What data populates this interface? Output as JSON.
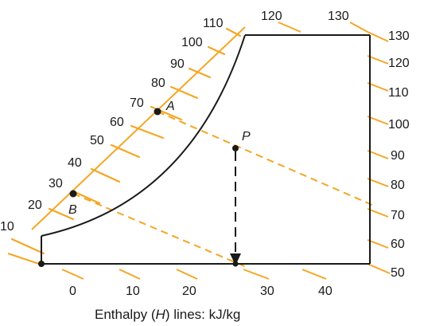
{
  "figure": {
    "left_scale": [
      "10",
      "20",
      "30",
      "40",
      "50",
      "60",
      "70",
      "80",
      "90",
      "100",
      "110"
    ],
    "top_scale": [
      "120",
      "130"
    ],
    "right_scale": [
      "50",
      "60",
      "70",
      "80",
      "90",
      "100",
      "110",
      "120",
      "130"
    ],
    "bottom_scale": [
      "0",
      "10",
      "20",
      "30",
      "40"
    ],
    "points": {
      "A": "A",
      "B": "B",
      "P": "P"
    },
    "caption_prefix": "Enthalpy (",
    "caption_symbol": "H",
    "caption_suffix": ") lines: kJ/kg",
    "colors": {
      "orange": "#F5A623",
      "black": "#1a1a1a"
    }
  }
}
